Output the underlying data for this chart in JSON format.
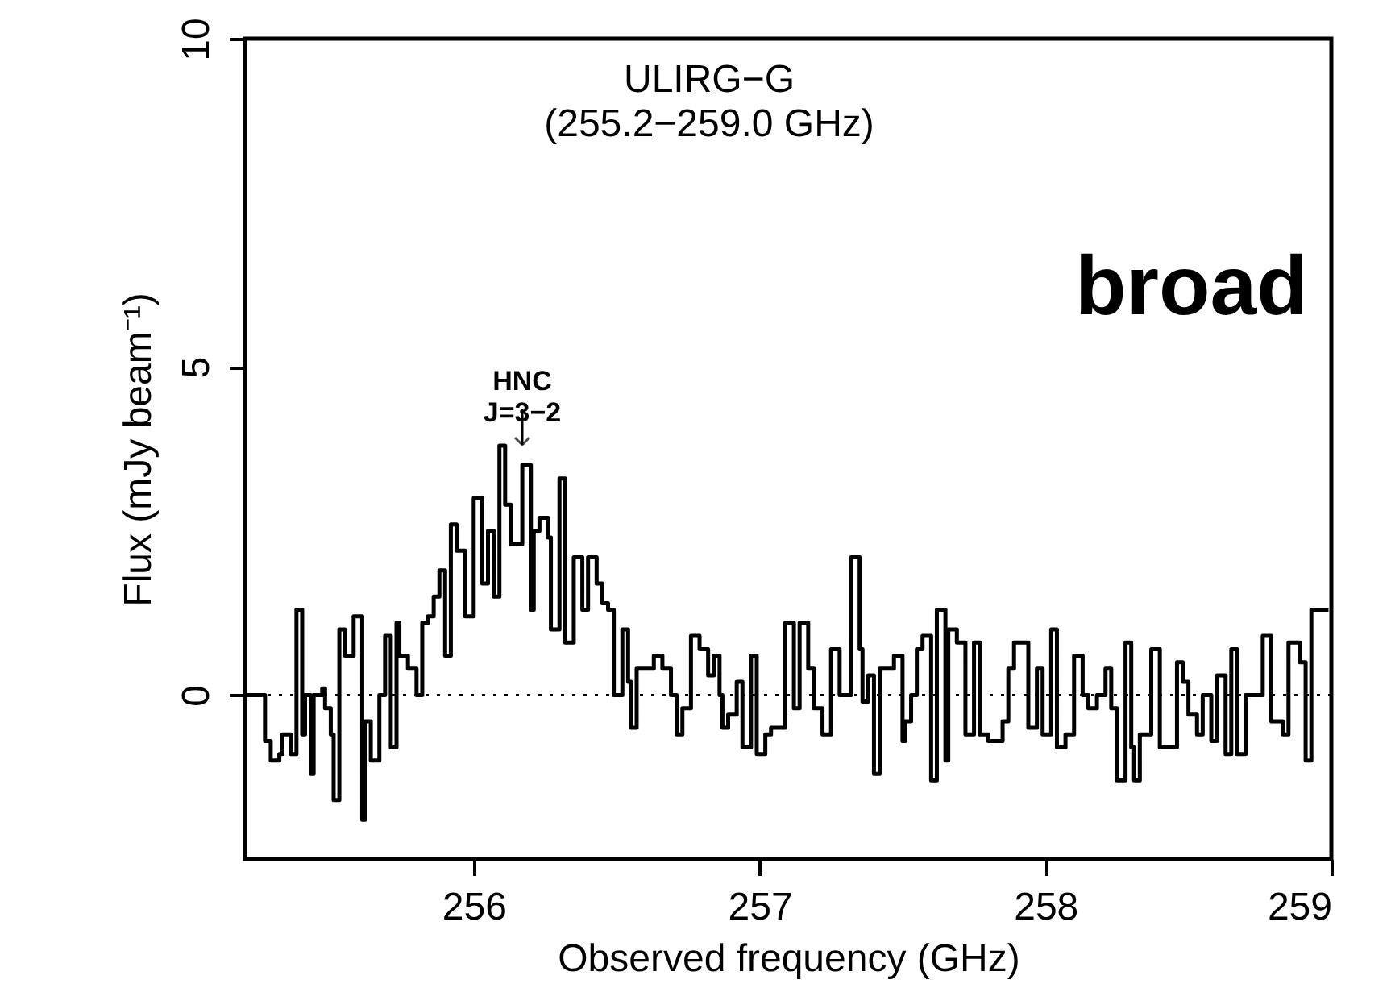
{
  "chart_data": {
    "type": "step",
    "xlabel": "Observed frequency (GHz)",
    "ylabel": "Flux (mJy beam⁻¹)",
    "xlim": [
      255.2,
      259.0
    ],
    "xticks": [
      256,
      257,
      258,
      259
    ],
    "ylim": [
      -2.5,
      10
    ],
    "yticks": [
      0,
      5,
      10
    ],
    "grid": false,
    "marker": "none",
    "line_style": "solid",
    "ref_lines": [
      {
        "axis": "y",
        "value": 0,
        "line_style": "dotted",
        "color": "#000000"
      }
    ],
    "annotations": [
      "ULIRG−G\n(255.2−259.0 GHz)",
      "HNC\nJ=3−2",
      "broad"
    ],
    "series": [
      {
        "color": "#000000",
        "x": [
          255.2,
          255.27,
          255.29,
          255.32,
          255.33,
          255.36,
          255.38,
          255.4,
          255.41,
          255.43,
          255.44,
          255.47,
          255.48,
          255.5,
          255.51,
          255.53,
          255.55,
          255.58,
          255.61,
          255.62,
          255.64,
          255.67,
          255.69,
          255.71,
          255.73,
          255.74,
          255.77,
          255.8,
          255.82,
          255.84,
          255.86,
          255.88,
          255.9,
          255.92,
          255.94,
          255.97,
          256.0,
          256.03,
          256.05,
          256.07,
          256.09,
          256.11,
          256.13,
          256.17,
          256.2,
          256.21,
          256.23,
          256.26,
          256.27,
          256.3,
          256.32,
          256.35,
          256.38,
          256.4,
          256.43,
          256.45,
          256.47,
          256.49,
          256.52,
          256.54,
          256.55,
          256.57,
          256.63,
          256.66,
          256.69,
          256.71,
          256.73,
          256.76,
          256.79,
          256.82,
          256.84,
          256.86,
          256.87,
          256.89,
          256.92,
          256.94,
          256.97,
          256.99,
          257.02,
          257.04,
          257.09,
          257.12,
          257.14,
          257.17,
          257.19,
          257.22,
          257.25,
          257.28,
          257.32,
          257.35,
          257.36,
          257.38,
          257.4,
          257.42,
          257.47,
          257.5,
          257.51,
          257.53,
          257.55,
          257.57,
          257.6,
          257.62,
          257.65,
          257.66,
          257.69,
          257.72,
          257.75,
          257.77,
          257.8,
          257.85,
          257.87,
          257.89,
          257.94,
          257.97,
          257.99,
          258.02,
          258.04,
          258.07,
          258.1,
          258.13,
          258.15,
          258.18,
          258.21,
          258.23,
          258.25,
          258.28,
          258.3,
          258.31,
          258.33,
          258.37,
          258.4,
          258.43,
          258.46,
          258.48,
          258.5,
          258.53,
          258.55,
          258.58,
          258.6,
          258.63,
          258.65,
          258.67,
          258.7,
          258.76,
          258.79,
          258.83,
          258.85,
          258.89,
          258.91,
          258.93,
          258.99
        ],
        "values": [
          0.0,
          -0.7,
          -1.0,
          -0.9,
          -0.6,
          -0.9,
          1.3,
          -0.6,
          0.0,
          -1.2,
          0.0,
          0.1,
          -0.2,
          -0.6,
          -1.6,
          1.0,
          0.6,
          1.2,
          -1.9,
          -0.4,
          -1.0,
          0.0,
          0.9,
          -0.8,
          1.1,
          0.6,
          0.4,
          0.0,
          1.1,
          1.2,
          1.5,
          1.9,
          0.6,
          2.6,
          2.2,
          1.2,
          3.0,
          1.7,
          2.5,
          1.5,
          3.8,
          2.9,
          2.3,
          3.5,
          1.3,
          2.5,
          2.7,
          2.4,
          1.0,
          3.3,
          0.8,
          2.1,
          1.3,
          2.1,
          1.7,
          1.4,
          1.3,
          0.0,
          1.0,
          0.2,
          -0.5,
          0.4,
          0.6,
          0.4,
          0.0,
          -0.6,
          -0.2,
          0.9,
          0.7,
          0.3,
          0.6,
          0.0,
          -0.5,
          -0.3,
          0.2,
          -0.8,
          0.6,
          -0.9,
          -0.6,
          -0.5,
          1.1,
          -0.2,
          1.1,
          0.4,
          -0.2,
          -0.6,
          0.7,
          0.0,
          2.1,
          0.7,
          -0.1,
          0.3,
          -1.2,
          0.4,
          0.6,
          -0.7,
          -0.4,
          0.0,
          0.7,
          0.9,
          -1.3,
          1.3,
          -1.0,
          1.0,
          0.8,
          -0.6,
          0.8,
          -0.6,
          -0.7,
          -0.4,
          0.4,
          0.8,
          -0.5,
          0.4,
          -0.6,
          1.0,
          -0.8,
          -0.6,
          0.6,
          0.0,
          -0.2,
          0.0,
          0.4,
          -0.2,
          -1.3,
          0.8,
          -0.8,
          -1.3,
          -0.6,
          0.7,
          -0.8,
          -0.8,
          0.5,
          0.2,
          -0.3,
          -0.6,
          0.0,
          -0.7,
          0.3,
          -0.9,
          0.7,
          -0.9,
          0.0,
          0.9,
          -0.4,
          -0.6,
          0.8,
          0.5,
          -1.0,
          1.3,
          1.3
        ]
      }
    ]
  }
}
